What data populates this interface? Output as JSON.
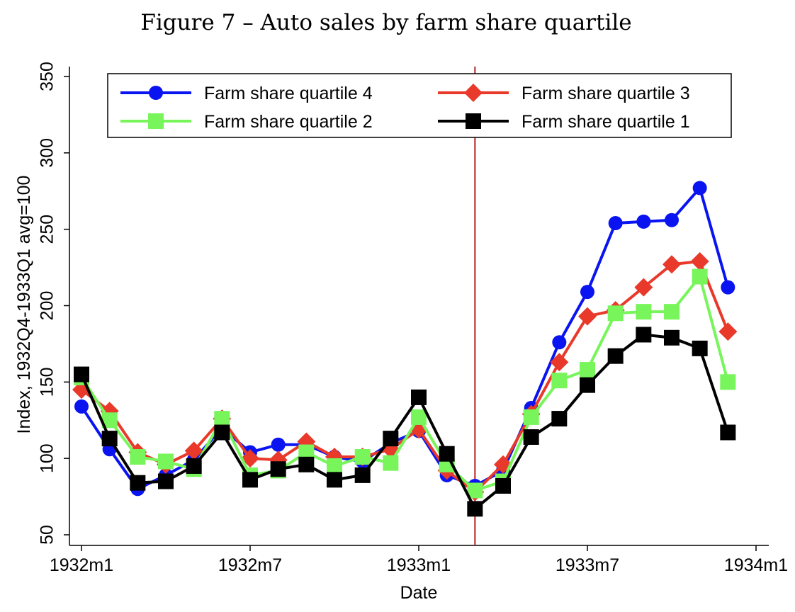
{
  "chart_data": {
    "type": "line",
    "title": "Figure 7 – Auto sales by farm share quartile",
    "xlabel": "Date",
    "ylabel": "Index, 1932Q4-1933Q1 avg=100",
    "x_tick_labels": [
      "1932m1",
      "1932m7",
      "1933m1",
      "1933m7",
      "1934m1"
    ],
    "x_tick_positions": [
      0,
      6,
      12,
      18,
      24
    ],
    "y_ticks": [
      50,
      100,
      150,
      200,
      250,
      300,
      350
    ],
    "ylim": [
      50,
      350
    ],
    "xlim": [
      0,
      24
    ],
    "grid": false,
    "legend_position": "top",
    "vertical_line_x": 14,
    "vertical_line_color": "#b22222",
    "x": [
      "1932m1",
      "1932m2",
      "1932m3",
      "1932m4",
      "1932m5",
      "1932m6",
      "1932m7",
      "1932m8",
      "1932m9",
      "1932m10",
      "1932m11",
      "1932m12",
      "1933m1",
      "1933m2",
      "1933m3",
      "1933m4",
      "1933m5",
      "1933m6",
      "1933m7",
      "1933m8",
      "1933m9",
      "1933m10",
      "1933m11",
      "1933m12"
    ],
    "series": [
      {
        "name": "Farm share quartile 4",
        "color": "#0a14f0",
        "marker": "circle",
        "values": [
          134,
          106,
          80,
          89,
          99,
          120,
          104,
          109,
          109,
          101,
          98,
          110,
          118,
          89,
          82,
          92,
          133,
          176,
          209,
          254,
          255,
          256,
          277,
          212
        ]
      },
      {
        "name": "Farm share quartile 3",
        "color": "#e8392a",
        "marker": "diamond",
        "values": [
          145,
          131,
          104,
          96,
          105,
          126,
          100,
          99,
          111,
          101,
          101,
          106,
          119,
          92,
          78,
          96,
          129,
          163,
          193,
          197,
          212,
          227,
          229,
          183
        ]
      },
      {
        "name": "Farm share quartile 2",
        "color": "#77f55a",
        "marker": "square",
        "values": [
          153,
          125,
          101,
          98,
          93,
          126,
          89,
          92,
          104,
          95,
          101,
          97,
          127,
          96,
          79,
          85,
          127,
          151,
          158,
          195,
          196,
          196,
          219,
          150
        ]
      },
      {
        "name": "Farm share quartile 1",
        "color": "#000000",
        "marker": "square",
        "values": [
          155,
          113,
          84,
          85,
          95,
          117,
          86,
          93,
          96,
          86,
          89,
          113,
          140,
          103,
          67,
          82,
          114,
          126,
          148,
          167,
          181,
          179,
          172,
          117
        ]
      }
    ]
  }
}
